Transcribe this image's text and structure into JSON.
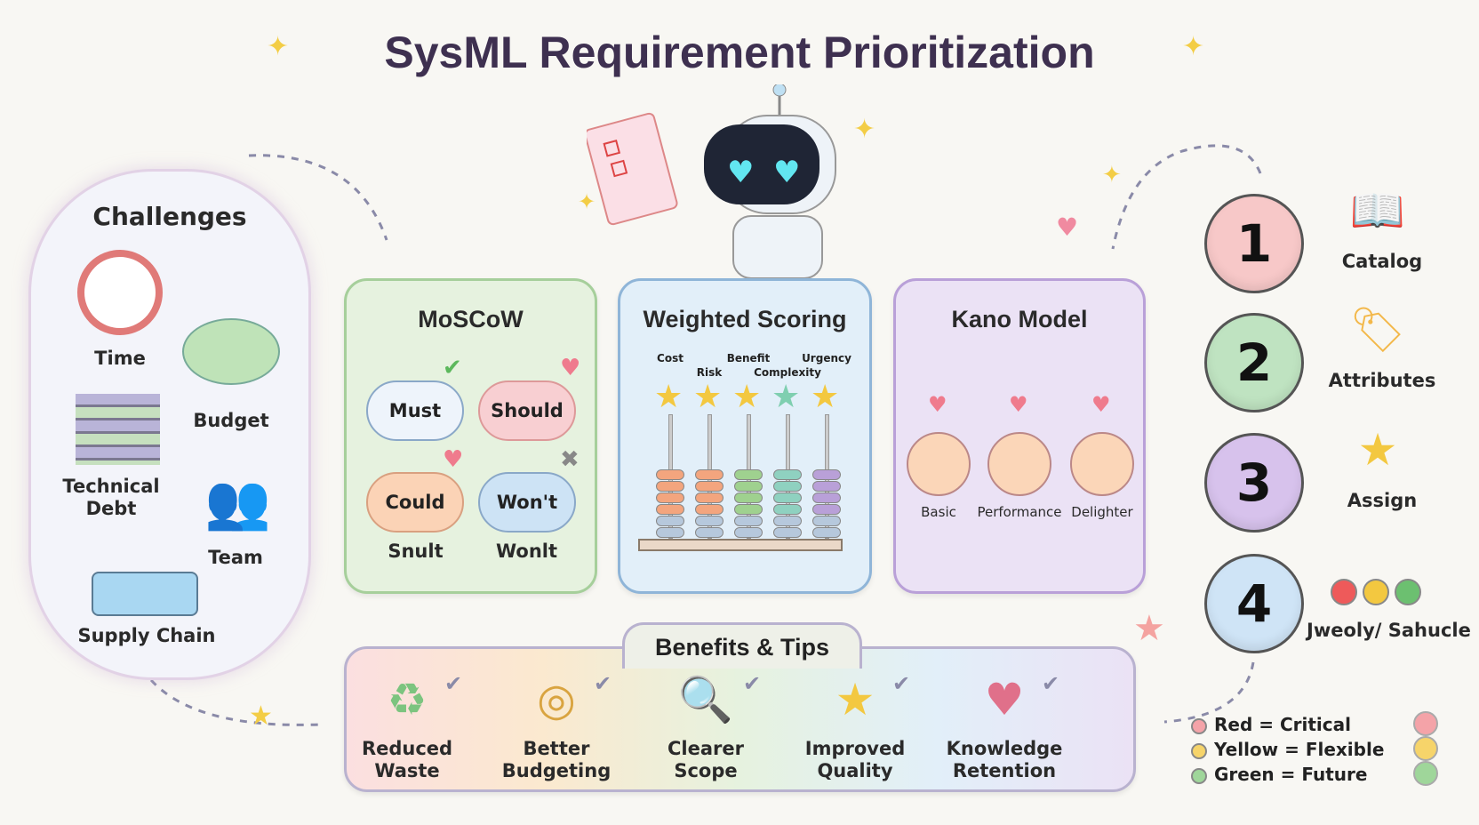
{
  "title": "SysML Requirement Prioritization",
  "challenges": {
    "heading": "Challenges",
    "items": [
      "Time",
      "Budget",
      "Technical Debt",
      "Team",
      "Supply Chain"
    ]
  },
  "moscow": {
    "title": "MoSCoW",
    "clouds": [
      {
        "label": "Must",
        "mark": "check-icon",
        "color": "#e8f1fb"
      },
      {
        "label": "Should",
        "mark": "heart-icon",
        "color": "#f8cfd2"
      },
      {
        "label": "Could",
        "mark": "heart-icon",
        "color": "#fbd3b6"
      },
      {
        "label": "Won't",
        "mark": "x-icon",
        "color": "#cde3f5"
      }
    ],
    "sublabels": [
      "Snult",
      "Wonlt"
    ]
  },
  "weighted": {
    "title": "Weighted Scoring",
    "criteria": [
      "Cost",
      "Risk",
      "Benefit",
      "Complexity",
      "Urgency"
    ],
    "bead_colors": [
      "#f3a57e",
      "#f3a57e",
      "#9fd18f",
      "#8fd1c0",
      "#b9a0d8"
    ]
  },
  "kano": {
    "title": "Kano Model",
    "faces": [
      "Basic",
      "Performance",
      "Delighter"
    ]
  },
  "steps": [
    {
      "number": "1",
      "label": "Catalog",
      "color": "#f7c8c8",
      "icon": "book-icon"
    },
    {
      "number": "2",
      "label": "Attributes",
      "color": "#bfe3c1",
      "icon": "tags-icon"
    },
    {
      "number": "3",
      "label": "Assign",
      "color": "#d7c2ec",
      "icon": "hand-star-icon"
    },
    {
      "number": "4",
      "label": "Jweoly/ Sahucle",
      "color": "#cfe4f6",
      "icon": "traffic-dots-icon"
    }
  ],
  "legend": [
    {
      "label": "Red = Critical",
      "color": "#f4a3a8"
    },
    {
      "label": "Yellow = Flexible",
      "color": "#f6d46a"
    },
    {
      "label": "Green = Future",
      "color": "#9fd69a"
    }
  ],
  "benefits": {
    "title": "Benefits & Tips",
    "items": [
      {
        "label": "Reduced Waste",
        "icon": "recycle-icon"
      },
      {
        "label": "Better Budgeting",
        "icon": "coins-icon"
      },
      {
        "label": "Clearer Scope",
        "icon": "magnifier-icon"
      },
      {
        "label": "Improved Quality",
        "icon": "star-icon"
      },
      {
        "label": "Knowledge Retention",
        "icon": "heart-book-icon"
      }
    ]
  }
}
